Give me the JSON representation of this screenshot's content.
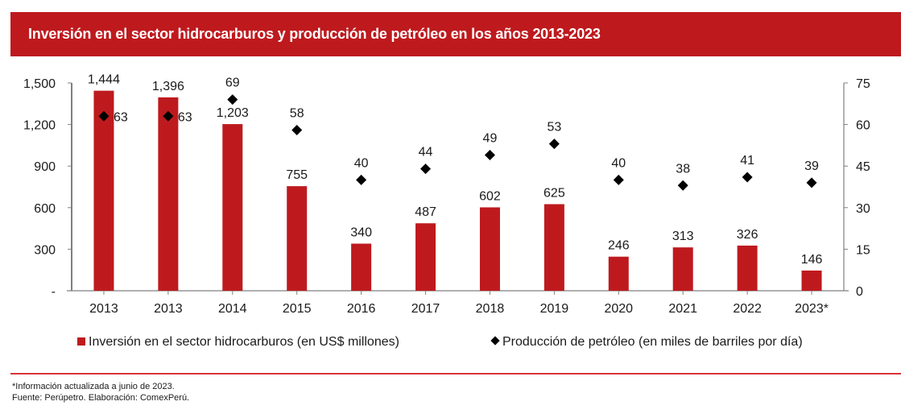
{
  "header": {
    "title": "Inversión en el sector hidrocarburos y producción de petróleo en los años 2013-2023"
  },
  "colors": {
    "brand_red": "#be1a1e",
    "bar": "#be1a1e",
    "marker": "#000000",
    "divider": "#d9343a"
  },
  "chart_data": {
    "type": "bar",
    "title": "Inversión en el sector hidrocarburos y producción de petróleo en los años 2013-2023",
    "categories": [
      "2013",
      "2013",
      "2014",
      "2015",
      "2016",
      "2017",
      "2018",
      "2019",
      "2020",
      "2021",
      "2022",
      "2023*"
    ],
    "series": [
      {
        "name": "Inversión en el sector hidrocarburos (en US$ millones)",
        "type": "bar",
        "axis": "left",
        "values": [
          1444,
          1396,
          1203,
          755,
          340,
          487,
          602,
          625,
          246,
          313,
          326,
          146
        ],
        "labels": [
          "1,444",
          "1,396",
          "1,203",
          "755",
          "340",
          "487",
          "602",
          "625",
          "246",
          "313",
          "326",
          "146"
        ]
      },
      {
        "name": "Producción de petróleo (en miles de barriles por día)",
        "type": "scatter",
        "marker": "diamond",
        "axis": "right",
        "values": [
          63,
          63,
          69,
          58,
          40,
          44,
          49,
          53,
          40,
          38,
          41,
          39
        ],
        "labels": [
          "63",
          "63",
          "69",
          "58",
          "40",
          "44",
          "49",
          "53",
          "40",
          "38",
          "41",
          "39"
        ]
      }
    ],
    "left_axis": {
      "ylim": [
        0,
        1500
      ],
      "ticks": [
        0,
        300,
        600,
        900,
        1200,
        1500
      ],
      "tick_labels": [
        "-",
        "300",
        "600",
        "900",
        "1,200",
        "1,500"
      ]
    },
    "right_axis": {
      "ylim": [
        0,
        75
      ],
      "ticks": [
        0,
        15,
        30,
        45,
        60,
        75
      ],
      "tick_labels": [
        "0",
        "15",
        "30",
        "45",
        "60",
        "75"
      ]
    },
    "xlabel": "",
    "ylabel": "",
    "grid": false,
    "legend_position": "bottom"
  },
  "legend": {
    "bar_label": "Inversión en el sector hidrocarburos (en US$ millones)",
    "marker_label": "Producción de petróleo (en miles de barriles por día)"
  },
  "footer": {
    "note": "*Información actualizada a junio de 2023.",
    "source": "Fuente: Perúpetro. Elaboración: ComexPerú."
  }
}
